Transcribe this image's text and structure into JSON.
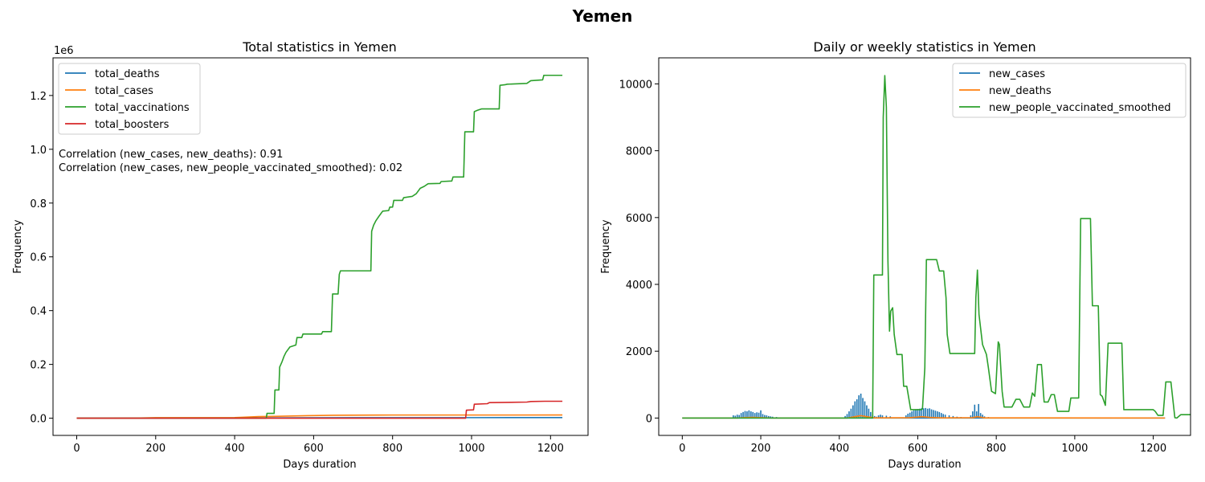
{
  "figure_title": "Yemen",
  "chart_data": [
    {
      "type": "line",
      "title": "Total statistics in Yemen",
      "xlabel": "Days duration",
      "ylabel": "Frequency",
      "y_multiplier_label": "1e6",
      "xlim": [
        -60,
        1295
      ],
      "ylim": [
        -0.064,
        1.34
      ],
      "xticks": [
        0,
        200,
        400,
        600,
        800,
        1000,
        1200
      ],
      "yticks": [
        0.0,
        0.2,
        0.4,
        0.6,
        0.8,
        1.0,
        1.2
      ],
      "legend_position": "upper-left",
      "annotations": [
        "Correlation (new_cases, new_deaths): 0.91",
        "Correlation (new_cases, new_people_vaccinated_smoothed): 0.02"
      ],
      "series": [
        {
          "name": "total_deaths",
          "color": "#1f77b4",
          "points": [
            [
              0,
              0
            ],
            [
              200,
              0.0005
            ],
            [
              400,
              0.0008
            ],
            [
              500,
              0.0012
            ],
            [
              700,
              0.0018
            ],
            [
              1000,
              0.0021
            ],
            [
              1230,
              0.0022
            ]
          ]
        },
        {
          "name": "total_cases",
          "color": "#ff7f0e",
          "points": [
            [
              0,
              0
            ],
            [
              150,
              0.0005
            ],
            [
              200,
              0.0021
            ],
            [
              300,
              0.0021
            ],
            [
              400,
              0.0022
            ],
            [
              420,
              0.0035
            ],
            [
              460,
              0.006
            ],
            [
              500,
              0.0068
            ],
            [
              600,
              0.0098
            ],
            [
              650,
              0.011
            ],
            [
              700,
              0.0113
            ],
            [
              760,
              0.0117
            ],
            [
              800,
              0.0118
            ],
            [
              1000,
              0.0118
            ],
            [
              1230,
              0.0119
            ]
          ]
        },
        {
          "name": "total_vaccinations",
          "color": "#2ca02c",
          "points": [
            [
              0,
              0
            ],
            [
              480,
              0
            ],
            [
              482,
              0.018
            ],
            [
              500,
              0.018
            ],
            [
              502,
              0.105
            ],
            [
              512,
              0.105
            ],
            [
              514,
              0.19
            ],
            [
              520,
              0.21
            ],
            [
              525,
              0.23
            ],
            [
              530,
              0.245
            ],
            [
              540,
              0.265
            ],
            [
              555,
              0.272
            ],
            [
              558,
              0.3
            ],
            [
              570,
              0.3
            ],
            [
              573,
              0.313
            ],
            [
              620,
              0.313
            ],
            [
              623,
              0.322
            ],
            [
              645,
              0.322
            ],
            [
              648,
              0.462
            ],
            [
              662,
              0.462
            ],
            [
              665,
              0.535
            ],
            [
              668,
              0.548
            ],
            [
              745,
              0.548
            ],
            [
              747,
              0.695
            ],
            [
              752,
              0.718
            ],
            [
              758,
              0.735
            ],
            [
              765,
              0.75
            ],
            [
              770,
              0.76
            ],
            [
              775,
              0.77
            ],
            [
              790,
              0.772
            ],
            [
              793,
              0.785
            ],
            [
              800,
              0.785
            ],
            [
              803,
              0.81
            ],
            [
              825,
              0.81
            ],
            [
              828,
              0.82
            ],
            [
              850,
              0.825
            ],
            [
              860,
              0.835
            ],
            [
              870,
              0.855
            ],
            [
              880,
              0.862
            ],
            [
              890,
              0.872
            ],
            [
              920,
              0.873
            ],
            [
              923,
              0.88
            ],
            [
              950,
              0.882
            ],
            [
              953,
              0.897
            ],
            [
              980,
              0.897
            ],
            [
              983,
              1.065
            ],
            [
              1005,
              1.065
            ],
            [
              1007,
              1.14
            ],
            [
              1015,
              1.145
            ],
            [
              1025,
              1.15
            ],
            [
              1070,
              1.15
            ],
            [
              1072,
              1.238
            ],
            [
              1085,
              1.24
            ],
            [
              1090,
              1.242
            ],
            [
              1140,
              1.245
            ],
            [
              1150,
              1.255
            ],
            [
              1180,
              1.258
            ],
            [
              1183,
              1.275
            ],
            [
              1230,
              1.275
            ]
          ]
        },
        {
          "name": "total_boosters",
          "color": "#d62728",
          "points": [
            [
              0,
              0
            ],
            [
              985,
              0
            ],
            [
              987,
              0.03
            ],
            [
              1005,
              0.031
            ],
            [
              1007,
              0.052
            ],
            [
              1040,
              0.054
            ],
            [
              1045,
              0.058
            ],
            [
              1100,
              0.059
            ],
            [
              1140,
              0.06
            ],
            [
              1150,
              0.062
            ],
            [
              1185,
              0.063
            ],
            [
              1230,
              0.063
            ]
          ]
        }
      ]
    },
    {
      "type": "line",
      "title": "Daily or weekly statistics in Yemen",
      "xlabel": "Days duration",
      "ylabel": "Frequency",
      "xlim": [
        -60,
        1295
      ],
      "ylim": [
        -520,
        10780
      ],
      "xticks": [
        0,
        200,
        400,
        600,
        800,
        1000,
        1200
      ],
      "yticks": [
        0,
        2000,
        4000,
        6000,
        8000,
        10000
      ],
      "legend_position": "upper-right",
      "new_cases_spikes": [
        [
          130,
          80
        ],
        [
          135,
          70
        ],
        [
          140,
          100
        ],
        [
          145,
          90
        ],
        [
          150,
          150
        ],
        [
          155,
          180
        ],
        [
          160,
          210
        ],
        [
          165,
          200
        ],
        [
          170,
          230
        ],
        [
          175,
          200
        ],
        [
          180,
          180
        ],
        [
          185,
          150
        ],
        [
          190,
          170
        ],
        [
          195,
          160
        ],
        [
          200,
          230
        ],
        [
          205,
          120
        ],
        [
          210,
          90
        ],
        [
          215,
          80
        ],
        [
          220,
          60
        ],
        [
          225,
          50
        ],
        [
          230,
          40
        ],
        [
          240,
          30
        ],
        [
          250,
          20
        ],
        [
          260,
          15
        ],
        [
          415,
          60
        ],
        [
          420,
          120
        ],
        [
          425,
          200
        ],
        [
          430,
          280
        ],
        [
          435,
          380
        ],
        [
          440,
          500
        ],
        [
          445,
          560
        ],
        [
          450,
          680
        ],
        [
          455,
          730
        ],
        [
          460,
          600
        ],
        [
          465,
          500
        ],
        [
          470,
          380
        ],
        [
          475,
          280
        ],
        [
          480,
          180
        ],
        [
          485,
          100
        ],
        [
          490,
          60
        ],
        [
          495,
          40
        ],
        [
          500,
          80
        ],
        [
          505,
          100
        ],
        [
          510,
          80
        ],
        [
          520,
          70
        ],
        [
          530,
          50
        ],
        [
          570,
          80
        ],
        [
          575,
          130
        ],
        [
          580,
          160
        ],
        [
          585,
          200
        ],
        [
          590,
          230
        ],
        [
          595,
          250
        ],
        [
          600,
          270
        ],
        [
          605,
          280
        ],
        [
          610,
          300
        ],
        [
          615,
          290
        ],
        [
          620,
          300
        ],
        [
          625,
          280
        ],
        [
          630,
          290
        ],
        [
          635,
          260
        ],
        [
          640,
          240
        ],
        [
          645,
          220
        ],
        [
          650,
          200
        ],
        [
          655,
          180
        ],
        [
          660,
          150
        ],
        [
          665,
          120
        ],
        [
          670,
          100
        ],
        [
          680,
          80
        ],
        [
          690,
          60
        ],
        [
          700,
          40
        ],
        [
          710,
          30
        ],
        [
          720,
          20
        ],
        [
          735,
          80
        ],
        [
          740,
          200
        ],
        [
          745,
          400
        ],
        [
          750,
          200
        ],
        [
          755,
          420
        ],
        [
          760,
          150
        ],
        [
          765,
          100
        ],
        [
          770,
          50
        ],
        [
          780,
          30
        ],
        [
          800,
          20
        ],
        [
          850,
          10
        ]
      ],
      "series": [
        {
          "name": "new_cases",
          "color": "#1f77b4",
          "points": []
        },
        {
          "name": "new_deaths",
          "color": "#ff7f0e",
          "points": [
            [
              0,
              0
            ],
            [
              140,
              0
            ],
            [
              160,
              15
            ],
            [
              180,
              20
            ],
            [
              200,
              10
            ],
            [
              230,
              0
            ],
            [
              420,
              0
            ],
            [
              440,
              40
            ],
            [
              455,
              70
            ],
            [
              470,
              40
            ],
            [
              490,
              5
            ],
            [
              580,
              10
            ],
            [
              610,
              40
            ],
            [
              630,
              20
            ],
            [
              660,
              5
            ],
            [
              740,
              10
            ],
            [
              752,
              40
            ],
            [
              770,
              5
            ],
            [
              1230,
              0
            ]
          ]
        },
        {
          "name": "new_people_vaccinated_smoothed",
          "color": "#2ca02c",
          "points": [
            [
              0,
              0
            ],
            [
              485,
              0
            ],
            [
              488,
              4280
            ],
            [
              510,
              4280
            ],
            [
              512,
              9000
            ],
            [
              516,
              10250
            ],
            [
              520,
              9300
            ],
            [
              524,
              4700
            ],
            [
              528,
              2600
            ],
            [
              531,
              3200
            ],
            [
              536,
              3300
            ],
            [
              540,
              2500
            ],
            [
              547,
              1900
            ],
            [
              560,
              1900
            ],
            [
              564,
              950
            ],
            [
              572,
              950
            ],
            [
              582,
              250
            ],
            [
              608,
              250
            ],
            [
              612,
              270
            ],
            [
              618,
              1500
            ],
            [
              622,
              4740
            ],
            [
              648,
              4740
            ],
            [
              655,
              4400
            ],
            [
              666,
              4400
            ],
            [
              672,
              3600
            ],
            [
              675,
              2500
            ],
            [
              682,
              1930
            ],
            [
              745,
              1930
            ],
            [
              748,
              3600
            ],
            [
              752,
              4430
            ],
            [
              756,
              3100
            ],
            [
              765,
              2200
            ],
            [
              775,
              1900
            ],
            [
              780,
              1500
            ],
            [
              788,
              800
            ],
            [
              798,
              730
            ],
            [
              805,
              2280
            ],
            [
              808,
              2200
            ],
            [
              815,
              800
            ],
            [
              820,
              330
            ],
            [
              840,
              330
            ],
            [
              850,
              560
            ],
            [
              860,
              560
            ],
            [
              870,
              330
            ],
            [
              885,
              330
            ],
            [
              892,
              750
            ],
            [
              898,
              650
            ],
            [
              905,
              1600
            ],
            [
              915,
              1600
            ],
            [
              922,
              480
            ],
            [
              932,
              480
            ],
            [
              940,
              700
            ],
            [
              948,
              700
            ],
            [
              956,
              200
            ],
            [
              985,
              200
            ],
            [
              990,
              600
            ],
            [
              1010,
              600
            ],
            [
              1015,
              5970
            ],
            [
              1040,
              5970
            ],
            [
              1045,
              3360
            ],
            [
              1060,
              3360
            ],
            [
              1065,
              700
            ],
            [
              1070,
              650
            ],
            [
              1078,
              380
            ],
            [
              1085,
              2240
            ],
            [
              1120,
              2240
            ],
            [
              1125,
              250
            ],
            [
              1200,
              250
            ],
            [
              1205,
              200
            ],
            [
              1212,
              80
            ],
            [
              1225,
              80
            ],
            [
              1232,
              1080
            ],
            [
              1245,
              1080
            ],
            [
              1255,
              10
            ],
            [
              1260,
              0
            ],
            [
              1270,
              100
            ],
            [
              1300,
              100
            ]
          ]
        }
      ]
    }
  ]
}
